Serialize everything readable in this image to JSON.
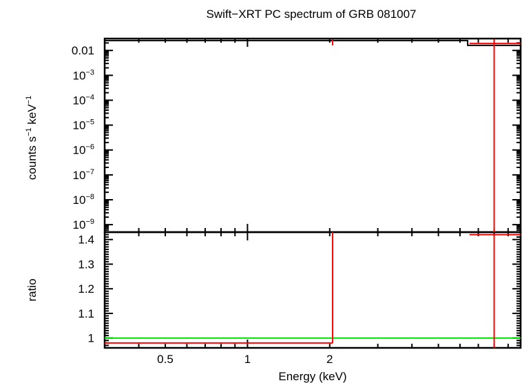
{
  "title": "Swift−XRT PC spectrum of GRB 081007",
  "colors": {
    "data": "#ff0000",
    "model": "#000000",
    "ratio_line": "#00dd00",
    "frame": "#000000"
  },
  "chart_data": [
    {
      "type": "line",
      "panel": "spectrum",
      "title": "Swift−XRT PC spectrum of GRB 081007",
      "ylabel_parts": [
        "counts s",
        "−1",
        " keV",
        "−1"
      ],
      "xlim": [
        0.3,
        10
      ],
      "ylim": [
        5e-10,
        0.03
      ],
      "yscale": "log",
      "xscale": "log",
      "yticks": [
        {
          "v": 0.01,
          "base": "0.01",
          "exp": ""
        },
        {
          "v": 0.001,
          "base": "10",
          "exp": "−3"
        },
        {
          "v": 0.0001,
          "base": "10",
          "exp": "−4"
        },
        {
          "v": 1e-05,
          "base": "10",
          "exp": "−5"
        },
        {
          "v": 1e-06,
          "base": "10",
          "exp": "−6"
        },
        {
          "v": 1e-07,
          "base": "10",
          "exp": "−7"
        },
        {
          "v": 1e-08,
          "base": "10",
          "exp": "−8"
        },
        {
          "v": 1e-09,
          "base": "10",
          "exp": "−9"
        }
      ],
      "series": [
        {
          "role": "model",
          "steps": [
            {
              "x0": 0.3,
              "x1": 6.4,
              "y": 0.025
            },
            {
              "x0": 6.4,
              "x1": 10,
              "y": 0.016
            }
          ]
        },
        {
          "role": "data",
          "points": [
            {
              "x": 2.05,
              "y": 0.022,
              "xerr": [
                0,
                0
              ],
              "yerr": [
                0.006,
                0.006
              ]
            },
            {
              "x": 8.0,
              "y": 0.019,
              "xerr": [
                1.5,
                2.0
              ],
              "yerr": [
                0.019,
                0.01
              ]
            }
          ]
        }
      ]
    },
    {
      "type": "line",
      "panel": "ratio",
      "ylabel": "ratio",
      "xlabel": "Energy (keV)",
      "xlim": [
        0.3,
        10
      ],
      "ylim": [
        0.96,
        1.43
      ],
      "xscale": "log",
      "xticklabels": [
        {
          "v": 0.5,
          "label": "0.5"
        },
        {
          "v": 1,
          "label": "1"
        },
        {
          "v": 2,
          "label": "2"
        }
      ],
      "yticklabels": [
        {
          "v": 1.0,
          "label": "1"
        },
        {
          "v": 1.1,
          "label": "1.1"
        },
        {
          "v": 1.2,
          "label": "1.2"
        },
        {
          "v": 1.3,
          "label": "1.3"
        },
        {
          "v": 1.4,
          "label": "1.4"
        }
      ],
      "reference_line": 1.0,
      "series": [
        {
          "role": "data",
          "points": [
            {
              "x": 2.05,
              "y": 0.98,
              "xerr": [
                1.75,
                0
              ],
              "yerr": [
                0,
                0.45
              ]
            },
            {
              "x": 8.0,
              "y": 1.42,
              "xerr": [
                1.5,
                2.0
              ],
              "yerr": [
                0.46,
                0
              ]
            }
          ]
        }
      ]
    }
  ]
}
